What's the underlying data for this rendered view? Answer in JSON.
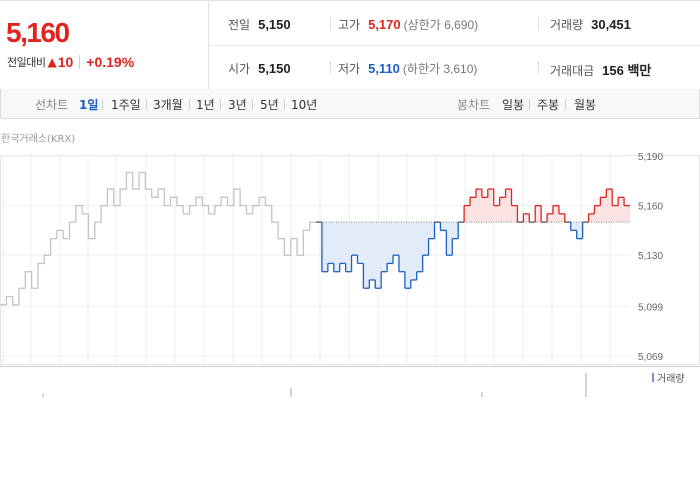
{
  "quote": {
    "price": "5,160",
    "change_label": "전일대비",
    "change_arrow": "▲",
    "change_value": "10",
    "change_rate": "+0.19%"
  },
  "stats": {
    "prev_close_label": "전일",
    "prev_close": "5,150",
    "high_label": "고가",
    "high": "5,170",
    "upper_limit": "(상한가 6,690)",
    "volume_label": "거래량",
    "volume": "30,451",
    "open_label": "시가",
    "open": "5,150",
    "low_label": "저가",
    "low": "5,110",
    "lower_limit": "(하한가 3,610)",
    "value_label": "거래대금",
    "value": "156 백만"
  },
  "line_tabs": {
    "label": "선차트",
    "items": [
      "1일",
      "1주일",
      "3개월",
      "1년",
      "3년",
      "5년",
      "10년"
    ],
    "selected": "1일"
  },
  "candle_tabs": {
    "label": "봉차트",
    "items": [
      "일봉",
      "주봉",
      "월봉"
    ]
  },
  "chart": {
    "source": "한국거래소(KRX)",
    "y_ticks": [
      "5,190",
      "5,160",
      "5,130",
      "5,099",
      "5,069"
    ],
    "baseline": 5150,
    "volume_legend": "거래량",
    "colors": {
      "up": "#e0241f",
      "down": "#1a5fc2",
      "past": "#c4c4c4"
    }
  },
  "chart_data": {
    "type": "line",
    "title": "",
    "ylim": [
      5069,
      5190
    ],
    "reference": 5150,
    "segments": [
      {
        "name": "past",
        "values": [
          5100,
          5105,
          5100,
          5110,
          5120,
          5110,
          5125,
          5130,
          5140,
          5145,
          5140,
          5150,
          5160,
          5155,
          5140,
          5150,
          5160,
          5170,
          5160,
          5170,
          5180,
          5170,
          5180,
          5170,
          5165,
          5170,
          5160,
          5165,
          5160,
          5155,
          5160,
          5165,
          5160,
          5155,
          5160,
          5165,
          5160,
          5170,
          5160,
          5155,
          5160,
          5165,
          5160,
          5150,
          5140,
          5130,
          5140,
          5130,
          5145,
          5150
        ]
      },
      {
        "name": "today",
        "values": [
          5150,
          5120,
          5125,
          5120,
          5125,
          5120,
          5130,
          5125,
          5110,
          5115,
          5110,
          5120,
          5125,
          5130,
          5120,
          5110,
          5115,
          5120,
          5130,
          5140,
          5150,
          5145,
          5130,
          5140,
          5150,
          5160,
          5165,
          5170,
          5165,
          5170,
          5160,
          5165,
          5170,
          5160,
          5150,
          5155,
          5150,
          5160,
          5150,
          5155,
          5160,
          5155,
          5150,
          5145,
          5140,
          5150,
          5155,
          5160,
          5165,
          5170,
          5160,
          5165,
          5160
        ]
      }
    ]
  }
}
